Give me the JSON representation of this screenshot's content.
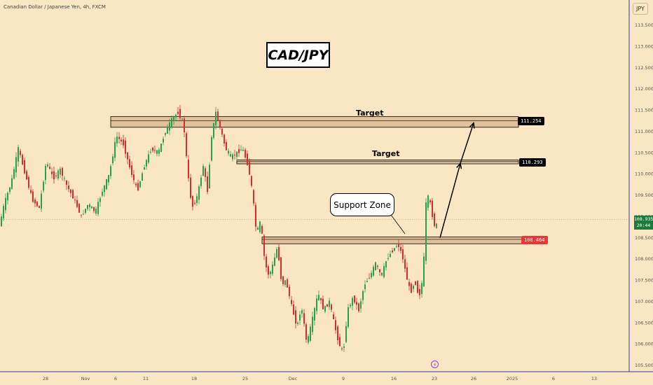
{
  "header": {
    "symbol_title": "Canadian Dollar / Japanese Yen, 4h, FXCM",
    "currency_label": "JPY"
  },
  "annotations": {
    "pair_title": "CAD/JPY",
    "support_label": "Support Zone",
    "target_upper_label": "Target",
    "target_lower_label": "Target"
  },
  "price_tags": {
    "upper_target": "111.254",
    "lower_target": "110.293",
    "support": "108.464",
    "current_price": "108.935",
    "countdown": "20:44"
  },
  "colors": {
    "background": "#fbe6c3",
    "up_candle": "#26a24a",
    "down_candle": "#d32f2f",
    "zone_fill": "#d8b48c",
    "support_tag": "#e53935",
    "target_tag": "#000000",
    "current_tag": "#1e7a3c"
  },
  "chart_data": {
    "type": "candlestick",
    "title": "Canadian Dollar / Japanese Yen, 4h, FXCM",
    "y_axis": {
      "ticks": [
        "113.500",
        "113.000",
        "112.500",
        "112.000",
        "111.500",
        "111.000",
        "110.500",
        "110.000",
        "109.500",
        "109.000",
        "108.500",
        "108.000",
        "107.500",
        "107.000",
        "106.500",
        "106.000",
        "105.500"
      ],
      "range": [
        105.4,
        113.8
      ]
    },
    "x_axis": {
      "ticks": [
        "28",
        "Nov",
        "6",
        "11",
        "18",
        "25",
        "Dec",
        "9",
        "16",
        "23",
        "26",
        "2025",
        "6",
        "13"
      ]
    },
    "levels": [
      {
        "name": "upper_target",
        "value": 111.254,
        "zone": [
          111.1,
          111.35
        ]
      },
      {
        "name": "lower_target",
        "value": 110.293,
        "zone": [
          110.24,
          110.33
        ]
      },
      {
        "name": "support",
        "value": 108.464,
        "zone": [
          108.36,
          108.52
        ]
      }
    ],
    "current_price": 108.935,
    "price_path": [
      [
        0,
        108.7
      ],
      [
        8,
        109.3
      ],
      [
        18,
        109.8
      ],
      [
        28,
        110.6
      ],
      [
        38,
        110.0
      ],
      [
        48,
        109.4
      ],
      [
        58,
        109.2
      ],
      [
        68,
        110.3
      ],
      [
        78,
        109.9
      ],
      [
        88,
        110.1
      ],
      [
        98,
        109.7
      ],
      [
        108,
        109.4
      ],
      [
        118,
        109.0
      ],
      [
        128,
        109.3
      ],
      [
        138,
        109.1
      ],
      [
        148,
        109.6
      ],
      [
        158,
        110.0
      ],
      [
        168,
        110.9
      ],
      [
        178,
        110.7
      ],
      [
        188,
        110.1
      ],
      [
        198,
        109.6
      ],
      [
        208,
        110.2
      ],
      [
        218,
        110.6
      ],
      [
        228,
        110.5
      ],
      [
        238,
        111.0
      ],
      [
        248,
        111.3
      ],
      [
        256,
        111.45
      ],
      [
        264,
        111.2
      ],
      [
        270,
        110.0
      ],
      [
        276,
        109.2
      ],
      [
        284,
        109.5
      ],
      [
        292,
        110.2
      ],
      [
        298,
        109.6
      ],
      [
        304,
        110.9
      ],
      [
        310,
        111.45
      ],
      [
        316,
        111.1
      ],
      [
        324,
        110.6
      ],
      [
        332,
        110.4
      ],
      [
        340,
        110.5
      ],
      [
        348,
        110.6
      ],
      [
        356,
        110.2
      ],
      [
        362,
        109.6
      ],
      [
        368,
        108.6
      ],
      [
        374,
        108.9
      ],
      [
        380,
        107.9
      ],
      [
        386,
        107.6
      ],
      [
        392,
        107.9
      ],
      [
        398,
        108.3
      ],
      [
        404,
        107.4
      ],
      [
        410,
        107.5
      ],
      [
        418,
        106.9
      ],
      [
        426,
        106.4
      ],
      [
        432,
        106.9
      ],
      [
        440,
        106.0
      ],
      [
        448,
        106.6
      ],
      [
        456,
        107.2
      ],
      [
        464,
        106.8
      ],
      [
        472,
        107.0
      ],
      [
        480,
        106.4
      ],
      [
        486,
        106.0
      ],
      [
        492,
        105.8
      ],
      [
        498,
        106.8
      ],
      [
        506,
        107.1
      ],
      [
        514,
        106.8
      ],
      [
        522,
        107.4
      ],
      [
        530,
        107.6
      ],
      [
        538,
        107.9
      ],
      [
        546,
        107.6
      ],
      [
        554,
        108.0
      ],
      [
        562,
        108.2
      ],
      [
        570,
        108.35
      ],
      [
        576,
        108.1
      ],
      [
        582,
        107.6
      ],
      [
        588,
        107.2
      ],
      [
        594,
        107.5
      ],
      [
        600,
        107.1
      ],
      [
        606,
        107.6
      ],
      [
        610,
        109.3
      ],
      [
        614,
        109.5
      ],
      [
        618,
        109.1
      ],
      [
        622,
        108.8
      ]
    ]
  }
}
